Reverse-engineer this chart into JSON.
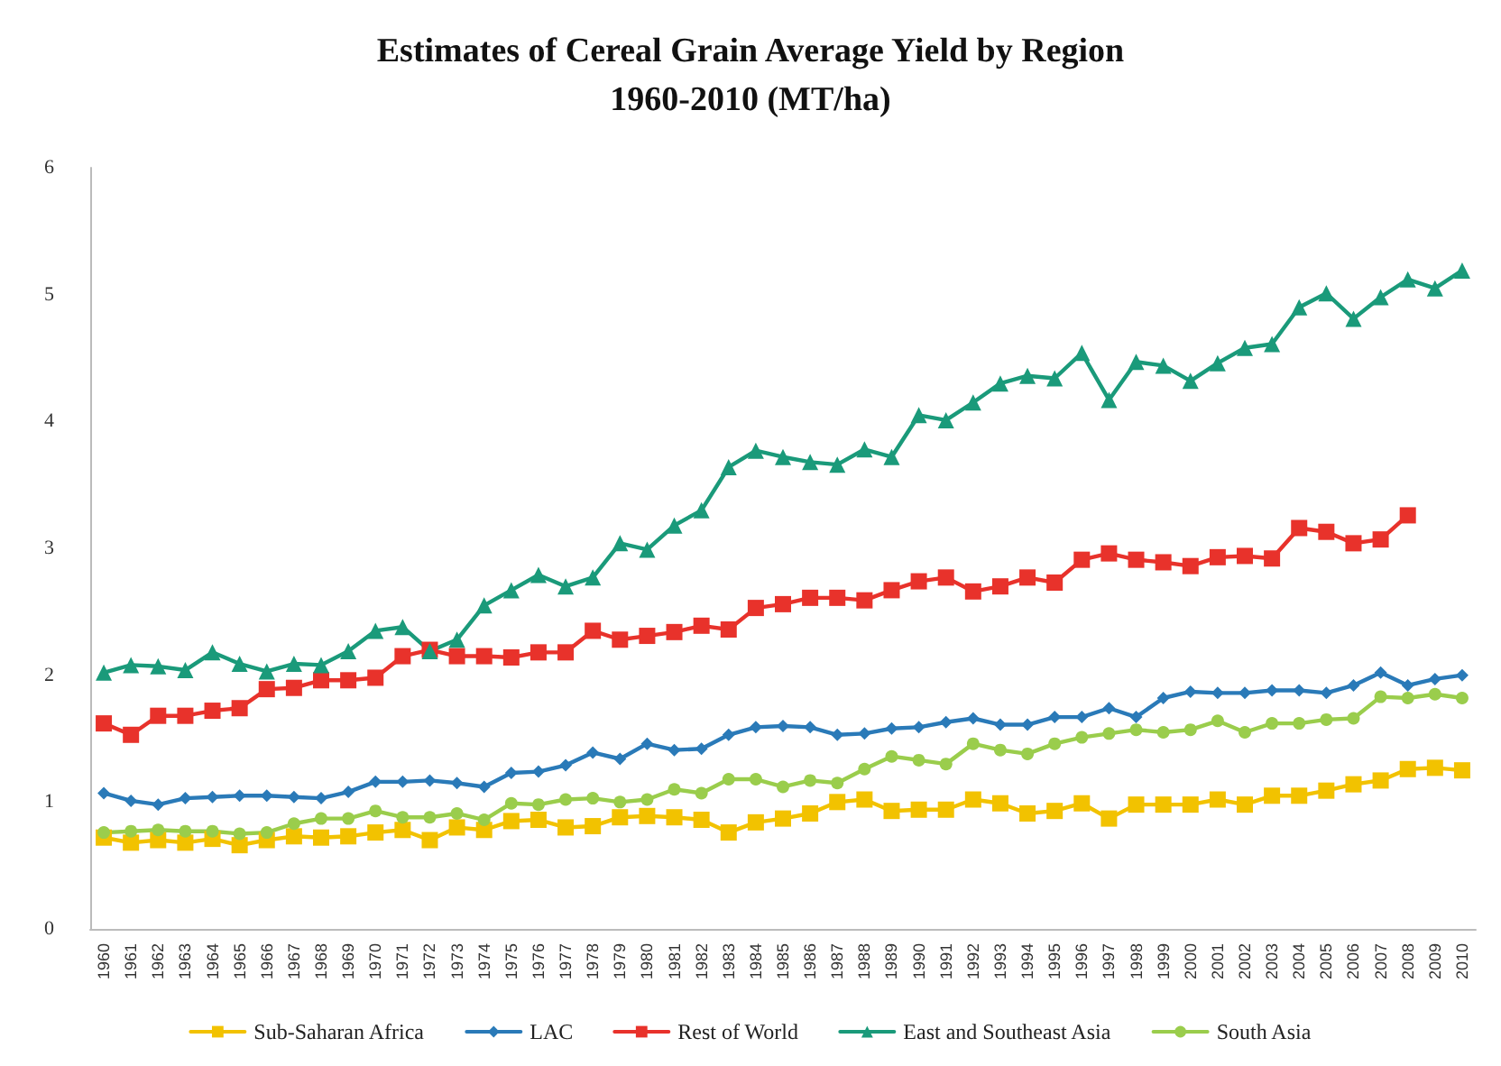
{
  "chart_data": {
    "type": "line",
    "title": "Estimates of Cereal Grain Average Yield by Region\n1960-2010 (MT/ha)",
    "categories": [
      "1960",
      "1961",
      "1962",
      "1963",
      "1964",
      "1965",
      "1966",
      "1967",
      "1968",
      "1969",
      "1970",
      "1971",
      "1972",
      "1973",
      "1974",
      "1975",
      "1976",
      "1977",
      "1978",
      "1979",
      "1980",
      "1981",
      "1982",
      "1983",
      "1984",
      "1985",
      "1986",
      "1987",
      "1988",
      "1989",
      "1990",
      "1991",
      "1992",
      "1993",
      "1994",
      "1995",
      "1996",
      "1997",
      "1998",
      "1999",
      "2000",
      "2001",
      "2002",
      "2003",
      "2004",
      "2005",
      "2006",
      "2007",
      "2008",
      "2009",
      "2010"
    ],
    "ylim": [
      0,
      6
    ],
    "yticks": [
      0,
      1,
      2,
      3,
      4,
      5,
      6
    ],
    "grid": false,
    "legend": "bottom",
    "line_style": "solid",
    "series": [
      {
        "name": "Sub-Saharan Africa",
        "color": "#f2c200",
        "marker": "square",
        "values": [
          0.72,
          0.68,
          0.7,
          0.68,
          0.71,
          0.66,
          0.7,
          0.73,
          0.72,
          0.73,
          0.76,
          0.78,
          0.7,
          0.8,
          0.78,
          0.85,
          0.86,
          0.8,
          0.81,
          0.88,
          0.89,
          0.88,
          0.86,
          0.76,
          0.84,
          0.87,
          0.91,
          1.0,
          1.02,
          0.93,
          0.94,
          0.94,
          1.02,
          0.99,
          0.91,
          0.93,
          0.99,
          0.87,
          0.98,
          0.98,
          0.98,
          1.02,
          0.98,
          1.05,
          1.05,
          1.09,
          1.14,
          1.17,
          1.26,
          1.27,
          1.25
        ]
      },
      {
        "name": "LAC",
        "color": "#2a7ab8",
        "marker": "diamond",
        "values": [
          1.07,
          1.01,
          0.98,
          1.03,
          1.04,
          1.05,
          1.05,
          1.04,
          1.03,
          1.08,
          1.16,
          1.16,
          1.17,
          1.15,
          1.12,
          1.23,
          1.24,
          1.29,
          1.39,
          1.34,
          1.46,
          1.41,
          1.42,
          1.53,
          1.59,
          1.6,
          1.59,
          1.53,
          1.54,
          1.58,
          1.59,
          1.63,
          1.66,
          1.61,
          1.61,
          1.67,
          1.67,
          1.74,
          1.67,
          1.82,
          1.87,
          1.86,
          1.86,
          1.88,
          1.88,
          1.86,
          1.92,
          2.02,
          1.92,
          1.97,
          2.0
        ]
      },
      {
        "name": "Rest of World",
        "color": "#e8322b",
        "marker": "square",
        "values": [
          1.62,
          1.53,
          1.68,
          1.68,
          1.72,
          1.74,
          1.89,
          1.9,
          1.96,
          1.96,
          1.98,
          2.15,
          2.2,
          2.15,
          2.15,
          2.14,
          2.18,
          2.18,
          2.35,
          2.28,
          2.31,
          2.34,
          2.39,
          2.36,
          2.53,
          2.56,
          2.61,
          2.61,
          2.59,
          2.67,
          2.74,
          2.77,
          2.66,
          2.7,
          2.77,
          2.73,
          2.91,
          2.96,
          2.91,
          2.89,
          2.86,
          2.93,
          2.94,
          2.92,
          3.16,
          3.13,
          3.04,
          3.07,
          3.26,
          null,
          null
        ]
      },
      {
        "name": "East and Southeast Asia",
        "color": "#1a9a7a",
        "marker": "triangle",
        "values": [
          2.02,
          2.08,
          2.07,
          2.04,
          2.18,
          2.09,
          2.03,
          2.09,
          2.08,
          2.19,
          2.35,
          2.38,
          2.19,
          2.28,
          2.55,
          2.67,
          2.79,
          2.7,
          2.77,
          3.04,
          2.99,
          3.18,
          3.3,
          3.64,
          3.77,
          3.72,
          3.68,
          3.66,
          3.78,
          3.72,
          4.05,
          4.01,
          4.15,
          4.3,
          4.36,
          4.34,
          4.54,
          4.17,
          4.47,
          4.44,
          4.32,
          4.46,
          4.58,
          4.61,
          4.9,
          5.01,
          4.81,
          4.98,
          5.12,
          5.05,
          5.19
        ]
      },
      {
        "name": "South Asia",
        "color": "#9acd4c",
        "marker": "circle",
        "values": [
          0.76,
          0.77,
          0.78,
          0.77,
          0.77,
          0.75,
          0.76,
          0.83,
          0.87,
          0.87,
          0.93,
          0.88,
          0.88,
          0.91,
          0.86,
          0.99,
          0.98,
          1.02,
          1.03,
          1.0,
          1.02,
          1.1,
          1.07,
          1.18,
          1.18,
          1.12,
          1.17,
          1.15,
          1.26,
          1.36,
          1.33,
          1.3,
          1.46,
          1.41,
          1.38,
          1.46,
          1.51,
          1.54,
          1.57,
          1.55,
          1.57,
          1.64,
          1.55,
          1.62,
          1.62,
          1.65,
          1.66,
          1.83,
          1.82,
          1.85,
          1.82
        ]
      }
    ]
  }
}
